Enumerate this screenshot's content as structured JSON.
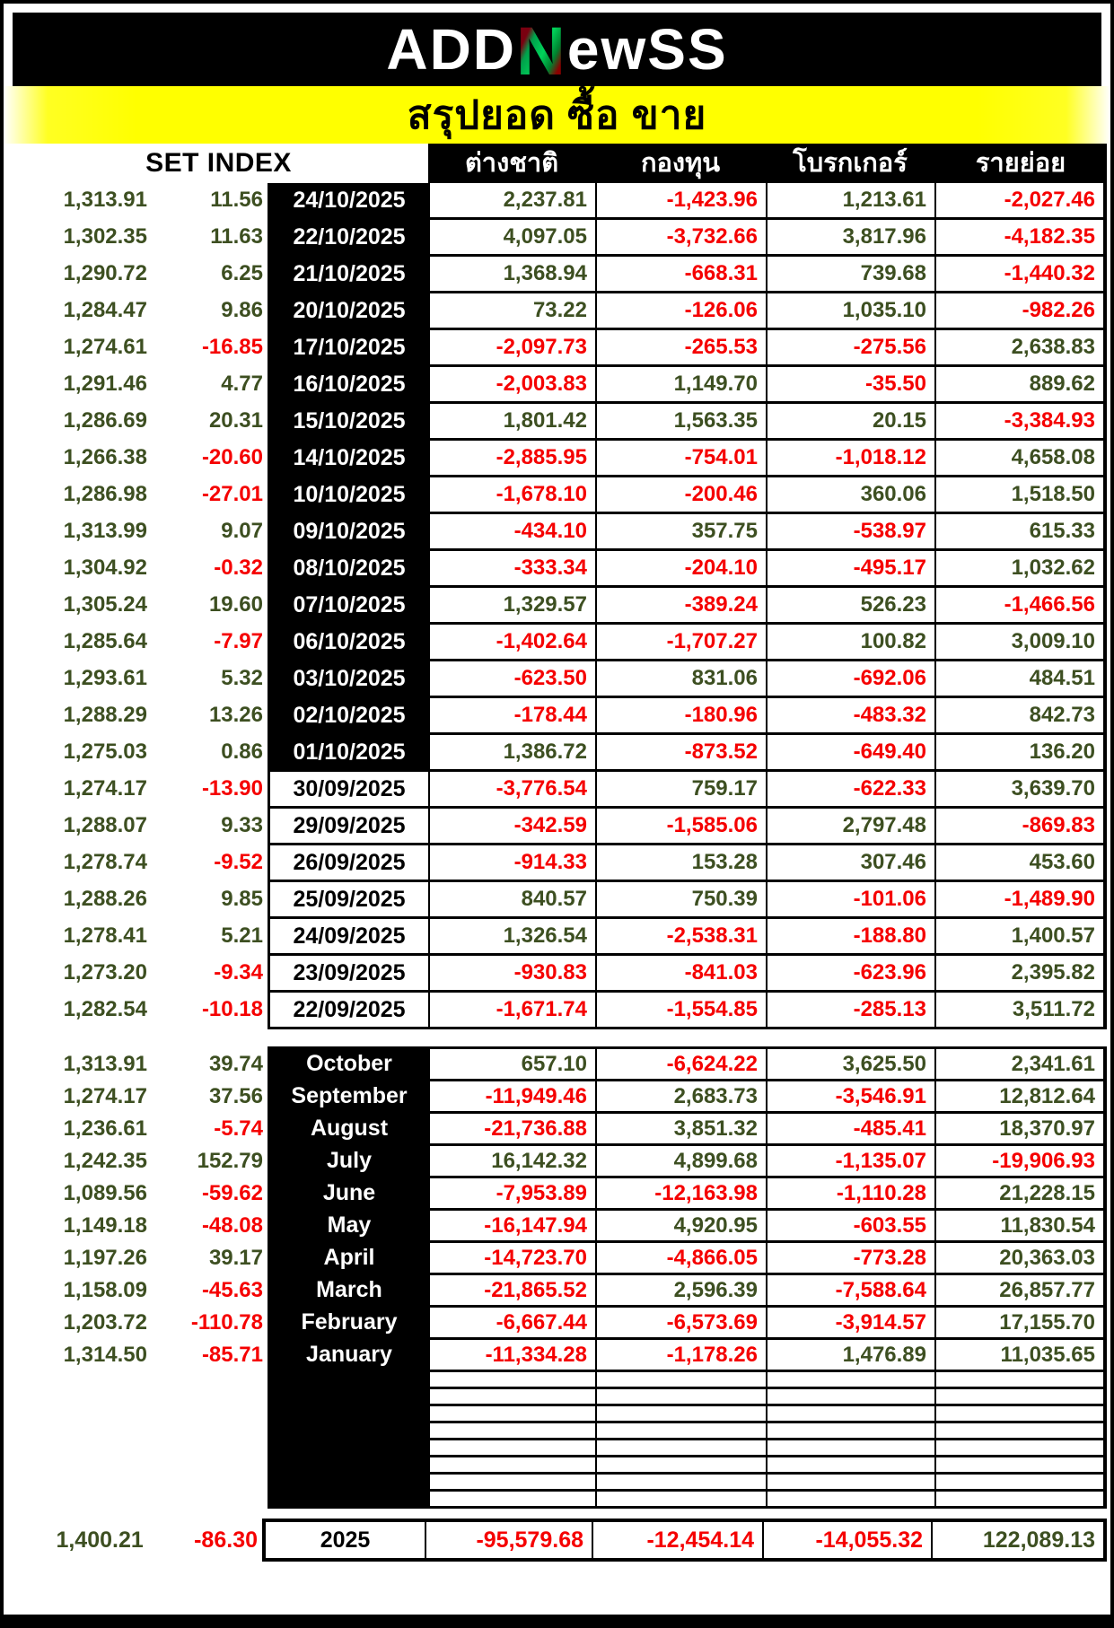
{
  "brand": {
    "logo_pre": "ADD",
    "logo_n": "N",
    "logo_post": "ewSS"
  },
  "title": "สรุปยอด ซื้อ ขาย",
  "table": {
    "left_header": "SET INDEX",
    "col_headers": [
      "ต่างชาติ",
      "กองทุน",
      "โบรกเกอร์",
      "รายย่อย"
    ],
    "daily_rows": [
      {
        "idx": "1,313.91",
        "chg": "11.56",
        "date": "24/10/2025",
        "date_style": "dark",
        "foreign": "2,237.81",
        "fund": "-1,423.96",
        "broker": "1,213.61",
        "retail": "-2,027.46"
      },
      {
        "idx": "1,302.35",
        "chg": "11.63",
        "date": "22/10/2025",
        "date_style": "dark",
        "foreign": "4,097.05",
        "fund": "-3,732.66",
        "broker": "3,817.96",
        "retail": "-4,182.35"
      },
      {
        "idx": "1,290.72",
        "chg": "6.25",
        "date": "21/10/2025",
        "date_style": "dark",
        "foreign": "1,368.94",
        "fund": "-668.31",
        "broker": "739.68",
        "retail": "-1,440.32"
      },
      {
        "idx": "1,284.47",
        "chg": "9.86",
        "date": "20/10/2025",
        "date_style": "dark",
        "foreign": "73.22",
        "fund": "-126.06",
        "broker": "1,035.10",
        "retail": "-982.26"
      },
      {
        "idx": "1,274.61",
        "chg": "-16.85",
        "date": "17/10/2025",
        "date_style": "dark",
        "foreign": "-2,097.73",
        "fund": "-265.53",
        "broker": "-275.56",
        "retail": "2,638.83"
      },
      {
        "idx": "1,291.46",
        "chg": "4.77",
        "date": "16/10/2025",
        "date_style": "dark",
        "foreign": "-2,003.83",
        "fund": "1,149.70",
        "broker": "-35.50",
        "retail": "889.62"
      },
      {
        "idx": "1,286.69",
        "chg": "20.31",
        "date": "15/10/2025",
        "date_style": "dark",
        "foreign": "1,801.42",
        "fund": "1,563.35",
        "broker": "20.15",
        "retail": "-3,384.93"
      },
      {
        "idx": "1,266.38",
        "chg": "-20.60",
        "date": "14/10/2025",
        "date_style": "dark",
        "foreign": "-2,885.95",
        "fund": "-754.01",
        "broker": "-1,018.12",
        "retail": "4,658.08"
      },
      {
        "idx": "1,286.98",
        "chg": "-27.01",
        "date": "10/10/2025",
        "date_style": "dark",
        "foreign": "-1,678.10",
        "fund": "-200.46",
        "broker": "360.06",
        "retail": "1,518.50"
      },
      {
        "idx": "1,313.99",
        "chg": "9.07",
        "date": "09/10/2025",
        "date_style": "dark",
        "foreign": "-434.10",
        "fund": "357.75",
        "broker": "-538.97",
        "retail": "615.33"
      },
      {
        "idx": "1,304.92",
        "chg": "-0.32",
        "date": "08/10/2025",
        "date_style": "dark",
        "foreign": "-333.34",
        "fund": "-204.10",
        "broker": "-495.17",
        "retail": "1,032.62"
      },
      {
        "idx": "1,305.24",
        "chg": "19.60",
        "date": "07/10/2025",
        "date_style": "dark",
        "foreign": "1,329.57",
        "fund": "-389.24",
        "broker": "526.23",
        "retail": "-1,466.56"
      },
      {
        "idx": "1,285.64",
        "chg": "-7.97",
        "date": "06/10/2025",
        "date_style": "dark",
        "foreign": "-1,402.64",
        "fund": "-1,707.27",
        "broker": "100.82",
        "retail": "3,009.10"
      },
      {
        "idx": "1,293.61",
        "chg": "5.32",
        "date": "03/10/2025",
        "date_style": "dark",
        "foreign": "-623.50",
        "fund": "831.06",
        "broker": "-692.06",
        "retail": "484.51"
      },
      {
        "idx": "1,288.29",
        "chg": "13.26",
        "date": "02/10/2025",
        "date_style": "dark",
        "foreign": "-178.44",
        "fund": "-180.96",
        "broker": "-483.32",
        "retail": "842.73"
      },
      {
        "idx": "1,275.03",
        "chg": "0.86",
        "date": "01/10/2025",
        "date_style": "dark",
        "foreign": "1,386.72",
        "fund": "-873.52",
        "broker": "-649.40",
        "retail": "136.20"
      },
      {
        "idx": "1,274.17",
        "chg": "-13.90",
        "date": "30/09/2025",
        "date_style": "light",
        "foreign": "-3,776.54",
        "fund": "759.17",
        "broker": "-622.33",
        "retail": "3,639.70"
      },
      {
        "idx": "1,288.07",
        "chg": "9.33",
        "date": "29/09/2025",
        "date_style": "light",
        "foreign": "-342.59",
        "fund": "-1,585.06",
        "broker": "2,797.48",
        "retail": "-869.83"
      },
      {
        "idx": "1,278.74",
        "chg": "-9.52",
        "date": "26/09/2025",
        "date_style": "light",
        "foreign": "-914.33",
        "fund": "153.28",
        "broker": "307.46",
        "retail": "453.60"
      },
      {
        "idx": "1,288.26",
        "chg": "9.85",
        "date": "25/09/2025",
        "date_style": "light",
        "foreign": "840.57",
        "fund": "750.39",
        "broker": "-101.06",
        "retail": "-1,489.90"
      },
      {
        "idx": "1,278.41",
        "chg": "5.21",
        "date": "24/09/2025",
        "date_style": "light",
        "foreign": "1,326.54",
        "fund": "-2,538.31",
        "broker": "-188.80",
        "retail": "1,400.57"
      },
      {
        "idx": "1,273.20",
        "chg": "-9.34",
        "date": "23/09/2025",
        "date_style": "light",
        "foreign": "-930.83",
        "fund": "-841.03",
        "broker": "-623.96",
        "retail": "2,395.82"
      },
      {
        "idx": "1,282.54",
        "chg": "-10.18",
        "date": "22/09/2025",
        "date_style": "light",
        "foreign": "-1,671.74",
        "fund": "-1,554.85",
        "broker": "-285.13",
        "retail": "3,511.72"
      }
    ],
    "monthly_rows": [
      {
        "idx": "1,313.91",
        "chg": "39.74",
        "date": "October",
        "date_style": "dark",
        "foreign": "657.10",
        "fund": "-6,624.22",
        "broker": "3,625.50",
        "retail": "2,341.61"
      },
      {
        "idx": "1,274.17",
        "chg": "37.56",
        "date": "September",
        "date_style": "dark",
        "foreign": "-11,949.46",
        "fund": "2,683.73",
        "broker": "-3,546.91",
        "retail": "12,812.64"
      },
      {
        "idx": "1,236.61",
        "chg": "-5.74",
        "date": "August",
        "date_style": "dark",
        "foreign": "-21,736.88",
        "fund": "3,851.32",
        "broker": "-485.41",
        "retail": "18,370.97"
      },
      {
        "idx": "1,242.35",
        "chg": "152.79",
        "date": "July",
        "date_style": "dark",
        "foreign": "16,142.32",
        "fund": "4,899.68",
        "broker": "-1,135.07",
        "retail": "-19,906.93"
      },
      {
        "idx": "1,089.56",
        "chg": "-59.62",
        "date": "June",
        "date_style": "dark",
        "foreign": "-7,953.89",
        "fund": "-12,163.98",
        "broker": "-1,110.28",
        "retail": "21,228.15"
      },
      {
        "idx": "1,149.18",
        "chg": "-48.08",
        "date": "May",
        "date_style": "dark",
        "foreign": "-16,147.94",
        "fund": "4,920.95",
        "broker": "-603.55",
        "retail": "11,830.54"
      },
      {
        "idx": "1,197.26",
        "chg": "39.17",
        "date": "April",
        "date_style": "dark",
        "foreign": "-14,723.70",
        "fund": "-4,866.05",
        "broker": "-773.28",
        "retail": "20,363.03"
      },
      {
        "idx": "1,158.09",
        "chg": "-45.63",
        "date": "March",
        "date_style": "dark",
        "foreign": "-21,865.52",
        "fund": "2,596.39",
        "broker": "-7,588.64",
        "retail": "26,857.77"
      },
      {
        "idx": "1,203.72",
        "chg": "-110.78",
        "date": "February",
        "date_style": "dark",
        "foreign": "-6,667.44",
        "fund": "-6,573.69",
        "broker": "-3,914.57",
        "retail": "17,155.70"
      },
      {
        "idx": "1,314.50",
        "chg": "-85.71",
        "date": "January",
        "date_style": "dark",
        "foreign": "-11,334.28",
        "fund": "-1,178.26",
        "broker": "1,476.89",
        "retail": "11,035.65"
      }
    ],
    "empty_row_count": 8,
    "year_row": {
      "idx": "1,400.21",
      "chg": "-86.30",
      "year": "2025",
      "foreign": "-95,579.68",
      "fund": "-12,454.14",
      "broker": "-14,055.32",
      "retail": "122,089.13"
    }
  },
  "colors": {
    "positive": "#3D4F21",
    "negative": "#F50000",
    "banner": "#FFFF00",
    "logo_green": "#00A14B",
    "logo_red": "#8B0000"
  }
}
